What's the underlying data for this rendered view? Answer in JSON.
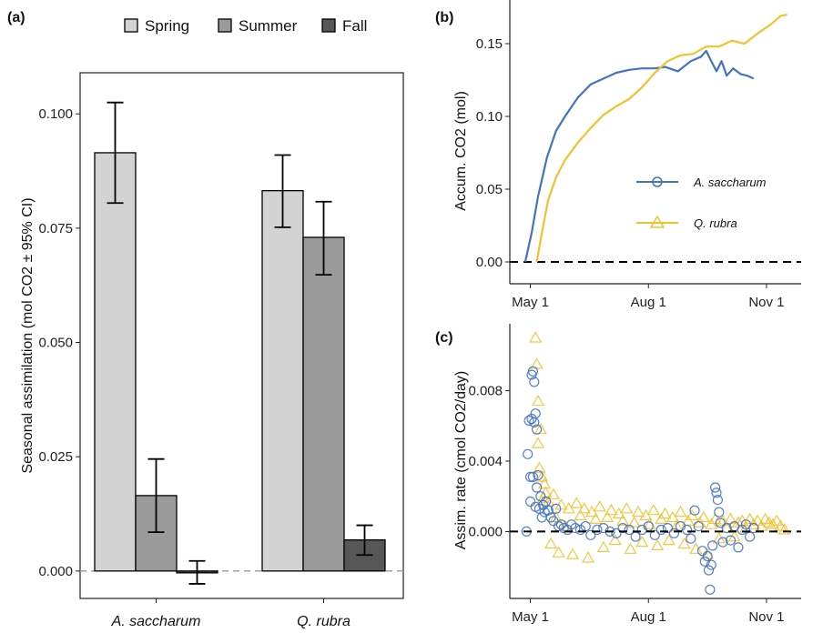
{
  "chart_data": [
    {
      "panel": "(a)",
      "type": "bar",
      "ylabel": "Seasonal assimilation (mol CO2 ± 95% CI)",
      "ylim": [
        -0.006,
        0.109
      ],
      "yticks": [
        "0.000",
        "0.025",
        "0.050",
        "0.075",
        "0.100"
      ],
      "categories": [
        "A. saccharum",
        "Q. rubra"
      ],
      "legend_position": "top",
      "series": [
        {
          "name": "Spring",
          "color": "#d3d3d3",
          "values": [
            0.0915,
            0.0832
          ],
          "ci_low": [
            0.0805,
            0.0752
          ],
          "ci_high": [
            0.1025,
            0.091
          ]
        },
        {
          "name": "Summer",
          "color": "#9a9a9a",
          "values": [
            0.0165,
            0.073
          ],
          "ci_low": [
            0.0085,
            0.0648
          ],
          "ci_high": [
            0.0245,
            0.0808
          ]
        },
        {
          "name": "Fall",
          "color": "#575757",
          "values": [
            -0.0003,
            0.0068
          ],
          "ci_low": [
            -0.0028,
            0.0035
          ],
          "ci_high": [
            0.0022,
            0.01
          ]
        }
      ]
    },
    {
      "panel": "(b)",
      "type": "line",
      "ylabel": "Accum. CO2 (mol)",
      "ylim": [
        -0.015,
        0.18
      ],
      "yticks": [
        "0.00",
        "0.05",
        "0.10",
        "0.15"
      ],
      "xticks": [
        "May 1",
        "Aug 1",
        "Nov 1"
      ],
      "xlim": [
        "2015-04-15",
        "2015-11-28"
      ],
      "legend_position": "bottom-right",
      "series": [
        {
          "name": "A. saccharum",
          "color": "#4472c4",
          "marker": "circle",
          "x": [
            "2015-04-27",
            "2015-05-02",
            "2015-05-07",
            "2015-05-14",
            "2015-05-21",
            "2015-05-28",
            "2015-06-07",
            "2015-06-17",
            "2015-06-27",
            "2015-07-07",
            "2015-07-17",
            "2015-07-27",
            "2015-08-06",
            "2015-08-14",
            "2015-08-24",
            "2015-09-03",
            "2015-09-11",
            "2015-09-15",
            "2015-09-19",
            "2015-09-23",
            "2015-09-27",
            "2015-10-01",
            "2015-10-06",
            "2015-10-12",
            "2015-10-17",
            "2015-10-22"
          ],
          "y": [
            0.0,
            0.02,
            0.045,
            0.072,
            0.09,
            0.1,
            0.113,
            0.122,
            0.126,
            0.13,
            0.132,
            0.133,
            0.133,
            0.134,
            0.131,
            0.138,
            0.141,
            0.145,
            0.138,
            0.131,
            0.138,
            0.128,
            0.133,
            0.129,
            0.128,
            0.126
          ]
        },
        {
          "name": "Q. rubra",
          "color": "#f2c12e",
          "marker": "triangle",
          "x": [
            "2015-05-06",
            "2015-05-10",
            "2015-05-15",
            "2015-05-21",
            "2015-05-28",
            "2015-06-07",
            "2015-06-17",
            "2015-06-27",
            "2015-07-07",
            "2015-07-17",
            "2015-07-27",
            "2015-08-06",
            "2015-08-16",
            "2015-08-26",
            "2015-09-05",
            "2015-09-15",
            "2015-09-25",
            "2015-10-05",
            "2015-10-15",
            "2015-10-25",
            "2015-11-04",
            "2015-11-12",
            "2015-11-17"
          ],
          "y": [
            0.0,
            0.02,
            0.043,
            0.058,
            0.07,
            0.082,
            0.092,
            0.101,
            0.107,
            0.112,
            0.12,
            0.13,
            0.138,
            0.142,
            0.143,
            0.148,
            0.148,
            0.152,
            0.15,
            0.157,
            0.163,
            0.169,
            0.17
          ]
        }
      ],
      "reference_line": 0
    },
    {
      "panel": "(c)",
      "type": "scatter",
      "ylabel": "Assim. rate (cmol CO2/day)",
      "ylim": [
        -0.0038,
        0.0118
      ],
      "yticks": [
        "0.000",
        "0.004",
        "0.008"
      ],
      "xticks": [
        "May 1",
        "Aug 1",
        "Nov 1"
      ],
      "xlim": [
        "2015-04-15",
        "2015-11-28"
      ],
      "series": [
        {
          "name": "A. saccharum",
          "color": "#4472c4",
          "marker": "circle",
          "x": [
            "2015-04-28",
            "2015-04-29",
            "2015-04-30",
            "2015-05-01",
            "2015-05-01",
            "2015-05-02",
            "2015-05-02",
            "2015-05-03",
            "2015-05-03",
            "2015-05-04",
            "2015-05-04",
            "2015-05-05",
            "2015-05-05",
            "2015-05-06",
            "2015-05-06",
            "2015-05-07",
            "2015-05-08",
            "2015-05-09",
            "2015-05-10",
            "2015-05-11",
            "2015-05-12",
            "2015-05-13",
            "2015-05-15",
            "2015-05-17",
            "2015-05-19",
            "2015-05-21",
            "2015-05-23",
            "2015-05-25",
            "2015-05-27",
            "2015-05-30",
            "2015-06-02",
            "2015-06-05",
            "2015-06-09",
            "2015-06-13",
            "2015-06-17",
            "2015-06-22",
            "2015-06-27",
            "2015-07-02",
            "2015-07-07",
            "2015-07-12",
            "2015-07-17",
            "2015-07-22",
            "2015-07-27",
            "2015-08-01",
            "2015-08-06",
            "2015-08-11",
            "2015-08-16",
            "2015-08-21",
            "2015-08-26",
            "2015-08-31",
            "2015-09-03",
            "2015-09-06",
            "2015-09-09",
            "2015-09-12",
            "2015-09-14",
            "2015-09-16",
            "2015-09-17",
            "2015-09-18",
            "2015-09-19",
            "2015-09-20",
            "2015-09-22",
            "2015-09-23",
            "2015-09-24",
            "2015-09-25",
            "2015-09-26",
            "2015-09-28",
            "2015-10-01",
            "2015-10-04",
            "2015-10-07",
            "2015-10-10",
            "2015-10-13",
            "2015-10-16",
            "2015-10-19",
            "2015-10-22"
          ],
          "y": [
            0.0,
            0.0044,
            0.0063,
            0.0031,
            0.0017,
            0.0064,
            0.0089,
            0.0091,
            0.0031,
            0.0085,
            0.0062,
            0.0067,
            0.0014,
            0.0058,
            0.0025,
            0.0032,
            0.0013,
            0.002,
            0.0008,
            0.0015,
            0.0011,
            0.0017,
            0.0012,
            0.0008,
            0.0006,
            0.0013,
            0.0003,
            0.0004,
            0.0002,
            0.0001,
            0.0004,
            0.0002,
            0.0001,
            0.0003,
            -0.0002,
            0.0001,
            0.0002,
            0.0,
            -0.0001,
            0.0002,
            0.0001,
            -0.0003,
            0.0001,
            0.0003,
            -0.0002,
            0.0001,
            0.0002,
            -0.0001,
            0.0003,
            0.0001,
            -0.0004,
            0.0012,
            0.0003,
            -0.0011,
            -0.0017,
            -0.0014,
            -0.0022,
            -0.0033,
            -0.0019,
            -0.0008,
            0.0025,
            0.0022,
            0.0018,
            0.0011,
            0.0005,
            -0.0006,
            0.0002,
            -0.0005,
            0.0003,
            -0.0009,
            0.0001,
            0.0004,
            -0.0003,
            0.0002
          ]
        },
        {
          "name": "Q. rubra",
          "color": "#f2c12e",
          "marker": "triangle",
          "x": [
            "2015-05-05",
            "2015-05-06",
            "2015-05-07",
            "2015-05-07",
            "2015-05-08",
            "2015-05-09",
            "2015-05-10",
            "2015-05-11",
            "2015-05-12",
            "2015-05-13",
            "2015-05-15",
            "2015-05-17",
            "2015-05-19",
            "2015-05-21",
            "2015-05-23",
            "2015-05-25",
            "2015-05-28",
            "2015-05-31",
            "2015-06-03",
            "2015-06-06",
            "2015-06-09",
            "2015-06-12",
            "2015-06-15",
            "2015-06-18",
            "2015-06-21",
            "2015-06-24",
            "2015-06-27",
            "2015-06-30",
            "2015-07-03",
            "2015-07-06",
            "2015-07-09",
            "2015-07-12",
            "2015-07-15",
            "2015-07-18",
            "2015-07-21",
            "2015-07-24",
            "2015-07-27",
            "2015-07-30",
            "2015-08-02",
            "2015-08-05",
            "2015-08-08",
            "2015-08-11",
            "2015-08-14",
            "2015-08-17",
            "2015-08-20",
            "2015-08-23",
            "2015-08-26",
            "2015-08-29",
            "2015-09-01",
            "2015-09-04",
            "2015-09-07",
            "2015-09-10",
            "2015-09-13",
            "2015-09-16",
            "2015-09-19",
            "2015-09-22",
            "2015-09-25",
            "2015-09-28",
            "2015-10-01",
            "2015-10-04",
            "2015-10-07",
            "2015-10-10",
            "2015-10-13",
            "2015-10-16",
            "2015-10-19",
            "2015-10-22",
            "2015-10-25",
            "2015-10-28",
            "2015-10-31",
            "2015-11-03",
            "2015-11-06",
            "2015-11-09",
            "2015-11-12",
            "2015-11-15"
          ],
          "y": [
            0.011,
            0.0095,
            0.0074,
            0.005,
            0.0036,
            0.0058,
            0.0031,
            0.0019,
            0.0027,
            0.0022,
            0.0017,
            -0.0007,
            0.0021,
            0.0008,
            -0.0012,
            0.0015,
            0.0003,
            0.0013,
            -0.0013,
            0.0016,
            0.0009,
            0.0013,
            -0.0015,
            0.0011,
            0.0007,
            0.0014,
            -0.0009,
            0.0008,
            0.0012,
            -0.0005,
            0.001,
            0.0006,
            0.0013,
            -0.001,
            0.0005,
            0.0011,
            -0.0006,
            0.0009,
            0.0004,
            0.0012,
            -0.0008,
            0.0007,
            0.001,
            -0.0005,
            0.0008,
            0.0003,
            0.0011,
            -0.0007,
            0.0006,
            0.0009,
            -0.001,
            0.0005,
            0.0008,
            -0.0013,
            0.0004,
            0.0007,
            -0.0004,
            0.0006,
            0.0002,
            0.0007,
            -0.0003,
            0.0005,
            0.0006,
            0.0002,
            0.0007,
            0.0004,
            0.0006,
            0.0003,
            0.0007,
            0.0005,
            0.0004,
            0.0006,
            0.0003,
            0.0001
          ]
        }
      ],
      "reference_line": 0
    }
  ]
}
